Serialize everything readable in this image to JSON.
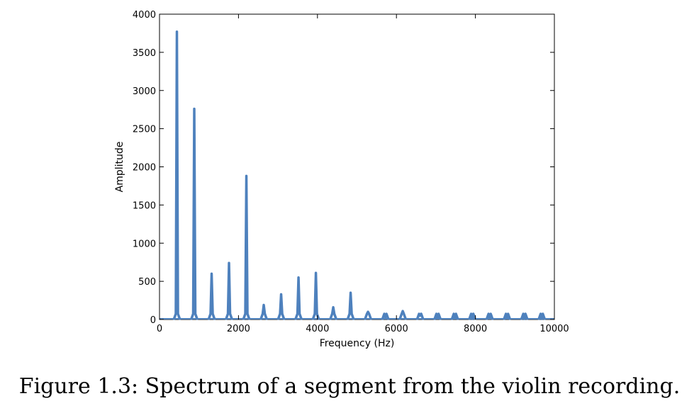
{
  "caption": "Figure 1.3: Spectrum of a segment from the violin recording.",
  "chart_data": {
    "type": "line",
    "title": "",
    "xlabel": "Frequency (Hz)",
    "ylabel": "Amplitude",
    "xlim": [
      0,
      10000
    ],
    "ylim": [
      0,
      4000
    ],
    "xticks": [
      0,
      2000,
      4000,
      6000,
      8000,
      10000
    ],
    "xtick_labels": [
      "0",
      "2000",
      "4000",
      "6000",
      "8000",
      "10000"
    ],
    "yticks": [
      0,
      500,
      1000,
      1500,
      2000,
      2500,
      3000,
      3500,
      4000
    ],
    "ytick_labels": [
      "0",
      "500",
      "1000",
      "1500",
      "2000",
      "2500",
      "3000",
      "3500",
      "4000"
    ],
    "grid": false,
    "line_color": "#4e81bd",
    "peaks": [
      {
        "x": 440,
        "y": 3770
      },
      {
        "x": 880,
        "y": 2760
      },
      {
        "x": 1320,
        "y": 600
      },
      {
        "x": 1760,
        "y": 740
      },
      {
        "x": 2200,
        "y": 1880
      },
      {
        "x": 2640,
        "y": 190
      },
      {
        "x": 3080,
        "y": 330
      },
      {
        "x": 3520,
        "y": 550
      },
      {
        "x": 3960,
        "y": 610
      },
      {
        "x": 4400,
        "y": 160
      },
      {
        "x": 4840,
        "y": 350
      },
      {
        "x": 5280,
        "y": 100
      },
      {
        "x": 5720,
        "y": 30
      },
      {
        "x": 6160,
        "y": 110
      },
      {
        "x": 6600,
        "y": 50
      },
      {
        "x": 7040,
        "y": 20
      },
      {
        "x": 7480,
        "y": 20
      },
      {
        "x": 7920,
        "y": 8
      },
      {
        "x": 8360,
        "y": 25
      },
      {
        "x": 8800,
        "y": 25
      },
      {
        "x": 9240,
        "y": 8
      },
      {
        "x": 9680,
        "y": 8
      }
    ]
  }
}
